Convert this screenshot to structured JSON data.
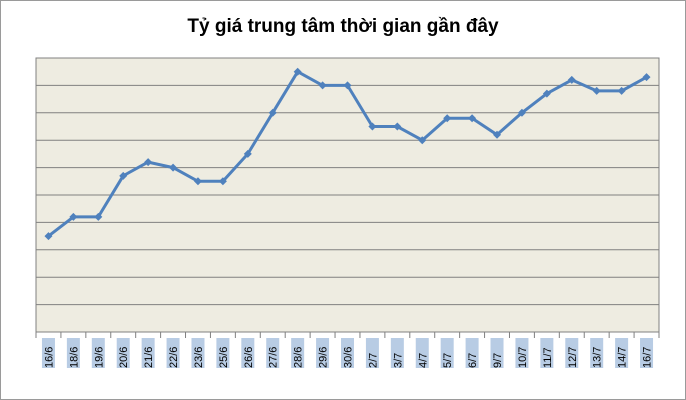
{
  "chart_data": {
    "type": "line",
    "title": "Tỷ giá trung tâm thời gian gần đây",
    "xlabel": "",
    "ylabel": "",
    "ylim": [
      0,
      10
    ],
    "grid": true,
    "legend": "none",
    "categories": [
      "16/6",
      "18/6",
      "19/6",
      "20/6",
      "21/6",
      "22/6",
      "23/6",
      "25/6",
      "26/6",
      "27/6",
      "28/6",
      "29/6",
      "30/6",
      "2/7",
      "3/7",
      "4/7",
      "5/7",
      "6/7",
      "9/7",
      "10/7",
      "11/7",
      "12/7",
      "13/7",
      "14/7",
      "16/7"
    ],
    "series": [
      {
        "values": [
          3.5,
          4.2,
          4.2,
          5.7,
          6.2,
          6.0,
          5.5,
          5.5,
          6.5,
          8.0,
          9.5,
          9.0,
          9.0,
          7.5,
          7.5,
          7.0,
          7.8,
          7.8,
          7.2,
          8.0,
          8.7,
          9.2,
          8.8,
          8.8,
          9.3
        ]
      }
    ],
    "colors": {
      "plot_background": "#EEECE1",
      "gridline": "#808080",
      "series_line": "#4F81BD",
      "tick_label_background": "#B8CCE4"
    }
  }
}
